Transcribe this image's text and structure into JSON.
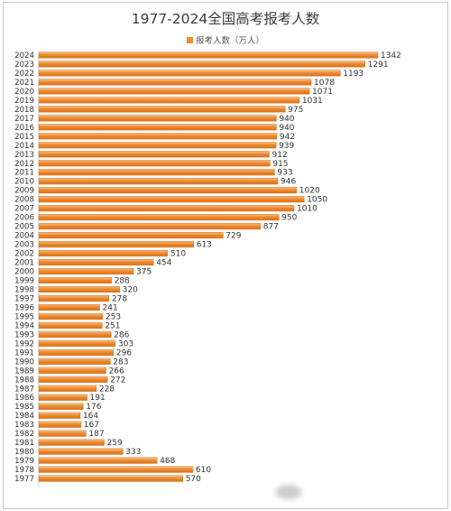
{
  "chart_data": {
    "type": "bar",
    "orientation": "horizontal",
    "title": "1977-2024全国高考报考人数",
    "legend_position": "top-center",
    "grid": false,
    "colors": {
      "bar": "#ed8b2f",
      "bar_light": "#f6c190",
      "bar_dark": "#d9721c"
    },
    "series": [
      {
        "name": "报考人数（万人）"
      }
    ],
    "categories": [
      "2024",
      "2023",
      "2022",
      "2021",
      "2020",
      "2019",
      "2018",
      "2017",
      "2016",
      "2015",
      "2014",
      "2013",
      "2012",
      "2011",
      "2010",
      "2009",
      "2008",
      "2007",
      "2006",
      "2005",
      "2004",
      "2003",
      "2002",
      "2001",
      "2000",
      "1999",
      "1998",
      "1997",
      "1996",
      "1995",
      "1994",
      "1993",
      "1992",
      "1991",
      "1990",
      "1989",
      "1988",
      "1987",
      "1986",
      "1985",
      "1984",
      "1983",
      "1982",
      "1981",
      "1980",
      "1979",
      "1978",
      "1977"
    ],
    "values": [
      1342,
      1291,
      1193,
      1078,
      1071,
      1031,
      975,
      940,
      940,
      942,
      939,
      912,
      915,
      933,
      946,
      1020,
      1050,
      1010,
      950,
      877,
      729,
      613,
      510,
      454,
      375,
      288,
      320,
      278,
      241,
      253,
      251,
      286,
      303,
      296,
      283,
      266,
      272,
      228,
      191,
      176,
      164,
      167,
      187,
      259,
      333,
      468,
      610,
      570
    ]
  }
}
